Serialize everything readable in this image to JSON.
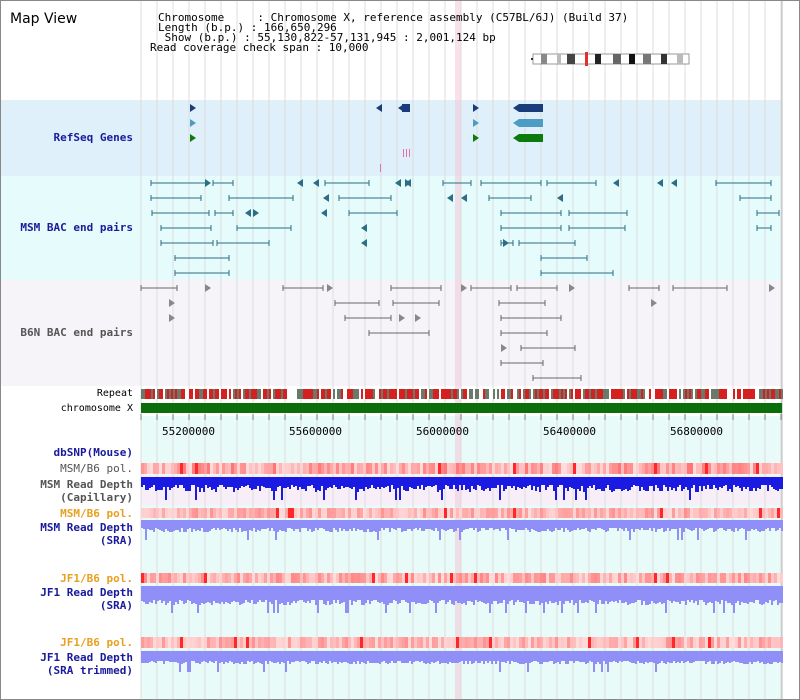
{
  "header": {
    "title": "Map View",
    "info_lines": [
      "Chromosome     : Chromosome X, reference assembly (C57BL/6J) (Build 37)",
      "Length (b.p.) : 166,650,296",
      " Show (b.p.) : 55,130,822-57,131,945 : 2,001,124 bp",
      "Read coverage check span : 10,000"
    ]
  },
  "tracks": {
    "refseq": "RefSeq Genes",
    "msm_bac": "MSM BAC end pairs",
    "b6n_bac": "B6N BAC end pairs",
    "repeat": "Repeat",
    "chromosome": "chromosome X",
    "dbsnp": "dbSNP(Mouse)",
    "msm_b6_pol_1": "MSM/B6 pol.",
    "msm_depth_cap_1": "MSM Read Depth",
    "msm_depth_cap_2": "(Capillary)",
    "msm_b6_pol_2": "MSM/B6 pol.",
    "msm_depth_sra_1": "MSM Read Depth",
    "msm_depth_sra_2": "(SRA)",
    "jf1_b6_pol_1": "JF1/B6 pol.",
    "jf1_depth_sra_1": "JF1 Read Depth",
    "jf1_depth_sra_2": "(SRA)",
    "jf1_b6_pol_2": "JF1/B6 pol.",
    "jf1_depth_trim_1": "JF1 Read Depth",
    "jf1_depth_trim_2": "(SRA trimmed)"
  },
  "axis": {
    "ticks": [
      "55200000",
      "55600000",
      "56000000",
      "56400000",
      "56800000"
    ]
  },
  "colors": {
    "refseq_bg": "#dff0fa",
    "msm_bg": "#e6fbfb",
    "b6n_bg": "#f6f4f8",
    "lower_bg": "#e9fbf9",
    "chromosome": "#0a6e0a",
    "msm_feature": "#2b6e86",
    "b6n_feature": "#666666",
    "depth_blue": "#1a1ae0",
    "depth_light": "#8f8ff7"
  }
}
